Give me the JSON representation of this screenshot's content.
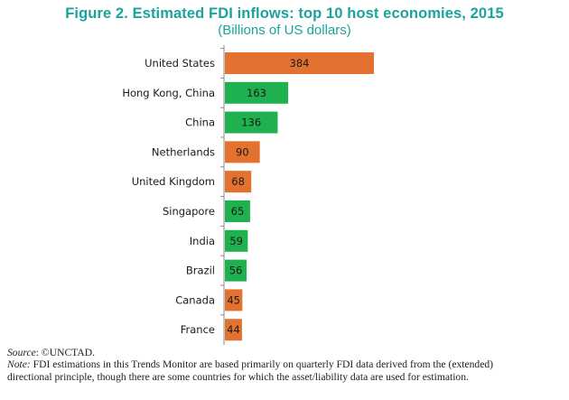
{
  "figure": {
    "title": "Figure 2. Estimated FDI inflows: top 10 host economies, 2015",
    "subtitle": "(Billions of US dollars)"
  },
  "chart_data": {
    "type": "bar",
    "orientation": "horizontal",
    "title": "Figure 2. Estimated FDI inflows: top 10 host economies, 2015",
    "subtitle": "(Billions of US dollars)",
    "xlabel": "",
    "ylabel": "",
    "xlim": [
      0,
      384
    ],
    "grid": false,
    "legend": "none",
    "categories": [
      "United States",
      "Hong Kong, China",
      "China",
      "Netherlands",
      "United Kingdom",
      "Singapore",
      "India",
      "Brazil",
      "Canada",
      "France"
    ],
    "values": [
      384,
      163,
      136,
      90,
      68,
      65,
      59,
      56,
      45,
      44
    ],
    "colors": [
      "#e3712f",
      "#1fb14f",
      "#1fb14f",
      "#e3712f",
      "#e3712f",
      "#1fb14f",
      "#1fb14f",
      "#1fb14f",
      "#e3712f",
      "#e3712f"
    ],
    "data_labels": [
      "384",
      "163",
      "136",
      "90",
      "68",
      "65",
      "59",
      "56",
      "45",
      "44"
    ]
  },
  "footer": {
    "source_label": "Source",
    "source_text": ": ©UNCTAD.",
    "note_label": "Note:",
    "note_line1": " FDI estimations in this Trends Monitor are based primarily on quarterly FDI data derived from the (extended)",
    "note_line2": "directional principle, though there are some countries for which the asset/liability data are used for estimation."
  }
}
